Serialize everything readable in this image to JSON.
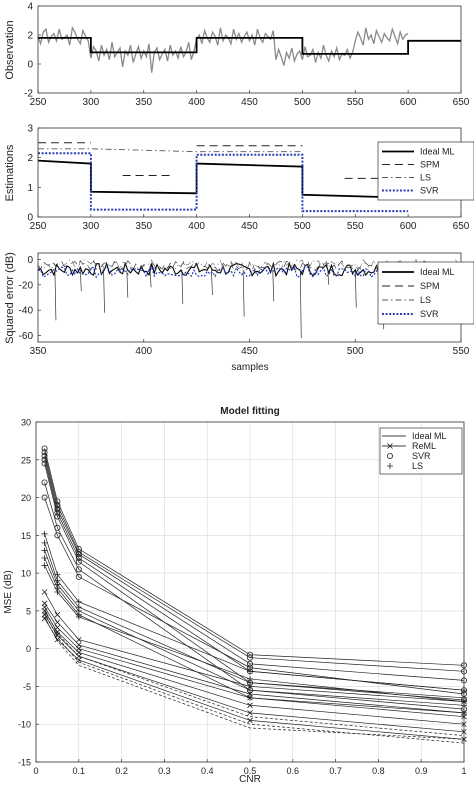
{
  "chart_data": [
    {
      "type": "line",
      "ylabel": "Observation",
      "xlim": [
        250,
        650
      ],
      "ylim": [
        -2,
        4
      ],
      "xticks": [
        250,
        300,
        350,
        400,
        450,
        500,
        550,
        600,
        650
      ],
      "yticks": [
        -2,
        0,
        2,
        4
      ],
      "series": [
        {
          "role": "step",
          "segments": [
            [
              250,
              300,
              1.8
            ],
            [
              300,
              400,
              0.8
            ],
            [
              400,
              500,
              1.8
            ],
            [
              500,
              600,
              0.7
            ],
            [
              600,
              650,
              1.6
            ]
          ]
        },
        {
          "role": "noisy-observation",
          "x_start": 250,
          "x_step": 2.5,
          "values": [
            1.9,
            1.4,
            2.2,
            2.4,
            1.5,
            1.9,
            2.1,
            1.6,
            2.4,
            1.7,
            1.8,
            2.0,
            1.3,
            2.5,
            2.2,
            1.7,
            1.4,
            2.3,
            1.9,
            1.6,
            0.4,
            1.2,
            0.9,
            0.2,
            1.3,
            0.6,
            1.0,
            0.3,
            1.5,
            0.5,
            0.8,
            1.1,
            -0.2,
            0.9,
            0.6,
            1.3,
            0.1,
            0.7,
            1.2,
            0.4,
            0.9,
            0.5,
            1.4,
            -0.6,
            0.8,
            1.1,
            0.3,
            0.7,
            1.0,
            0.2,
            1.3,
            0.6,
            0.9,
            0.4,
            1.2,
            0.5,
            0.8,
            1.5,
            0.3,
            0.9,
            1.7,
            2.0,
            1.4,
            2.3,
            1.8,
            1.5,
            2.2,
            1.9,
            1.3,
            2.5,
            1.6,
            2.0,
            1.8,
            1.4,
            2.4,
            1.7,
            2.1,
            1.5,
            1.9,
            2.2,
            1.6,
            2.0,
            1.3,
            2.4,
            1.8,
            1.5,
            2.1,
            1.9,
            1.7,
            2.3,
            0.3,
            1.0,
            0.5,
            -0.1,
            0.8,
            0.4,
            1.1,
            0.2,
            0.7,
            0.9,
            0.3,
            1.2,
            0.5,
            0.6,
            1.0,
            0.1,
            0.8,
            0.4,
            1.3,
            0.6,
            0.2,
            0.9,
            0.5,
            1.1,
            0.3,
            0.7,
            0.6,
            1.0,
            0.4,
            0.8,
            1.6,
            2.2,
            1.8,
            1.3,
            2.5,
            1.7,
            2.0,
            1.4,
            2.3,
            1.9,
            1.5,
            2.1,
            1.8,
            1.6,
            2.4,
            1.9,
            1.4,
            2.2,
            1.7,
            2.0,
            2.1
          ]
        }
      ]
    },
    {
      "type": "line",
      "ylabel": "Estimations",
      "xlim": [
        250,
        650
      ],
      "ylim": [
        0,
        3
      ],
      "xticks": [
        250,
        300,
        350,
        400,
        450,
        500,
        550,
        600,
        650
      ],
      "yticks": [
        0,
        1,
        2,
        3
      ],
      "legend": {
        "placement": "right",
        "entries": [
          "Ideal ML",
          "SPM",
          "LS",
          "SVR"
        ]
      },
      "series": [
        {
          "name": "Ideal ML",
          "style": "solid",
          "segments": [
            [
              250,
              300,
              1.9,
              1.8
            ],
            [
              300,
              400,
              0.85,
              0.8
            ],
            [
              400,
              500,
              1.8,
              1.7
            ],
            [
              500,
              600,
              0.75,
              0.65
            ]
          ]
        },
        {
          "name": "SPM",
          "style": "dashed",
          "segments": [
            [
              250,
              300,
              2.5,
              2.5
            ],
            [
              330,
              375,
              1.4,
              1.4
            ],
            [
              400,
              500,
              2.4,
              2.4
            ],
            [
              540,
              580,
              1.3,
              1.3
            ]
          ]
        },
        {
          "name": "LS",
          "style": "dash-dot",
          "segments": [
            [
              250,
              300,
              2.3,
              2.3
            ],
            [
              400,
              500,
              2.2,
              2.2
            ]
          ]
        },
        {
          "name": "SVR",
          "style": "dotted",
          "segments": [
            [
              250,
              300,
              2.15,
              2.15
            ],
            [
              300,
              400,
              0.25,
              0.25
            ],
            [
              400,
              500,
              2.1,
              2.1
            ],
            [
              500,
              600,
              0.2,
              0.2
            ]
          ]
        }
      ]
    },
    {
      "type": "line",
      "ylabel": "Squared error (dB)",
      "xlabel": "samples",
      "xlim": [
        350,
        550
      ],
      "ylim": [
        -65,
        5
      ],
      "xticks": [
        350,
        400,
        450,
        500,
        550
      ],
      "yticks": [
        0,
        -20,
        -40,
        -60
      ],
      "legend": {
        "placement": "right",
        "entries": [
          "Ideal ML",
          "SPM",
          "LS",
          "SVR"
        ]
      },
      "series": [
        {
          "name": "Ideal ML",
          "style": "solid",
          "mean": -8
        },
        {
          "name": "SPM",
          "style": "dashed",
          "mean": -5
        },
        {
          "name": "LS",
          "style": "dash-dot",
          "mean": -4
        },
        {
          "name": "SVR",
          "style": "dotted",
          "mean": -10
        },
        {
          "role": "error-dips",
          "x": [
            358,
            370,
            381,
            392,
            403,
            418,
            432,
            447,
            461,
            474,
            487,
            500,
            513,
            526,
            538
          ],
          "y": [
            -48,
            -25,
            -42,
            -30,
            -22,
            -35,
            -28,
            -45,
            -33,
            -62,
            -20,
            -38,
            -55,
            -27,
            -40
          ]
        }
      ]
    },
    {
      "type": "line",
      "title": "Model fitting",
      "xlabel": "CNR",
      "ylabel": "MSE (dB)",
      "xlim": [
        0,
        1
      ],
      "ylim": [
        -15,
        30
      ],
      "xticks": [
        0,
        0.1,
        0.2,
        0.3,
        0.4,
        0.5,
        0.6,
        0.7,
        0.8,
        0.9,
        1
      ],
      "yticks": [
        -15,
        -10,
        -5,
        0,
        5,
        10,
        15,
        20,
        25,
        30
      ],
      "x": [
        0.02,
        0.05,
        0.1,
        0.5,
        1
      ],
      "grid": true,
      "legend": {
        "placement": "top-right",
        "entries": [
          "Ideal ML",
          "ReML",
          "SVR",
          "LS"
        ]
      },
      "series": [
        {
          "name": "SVR",
          "marker": "circle",
          "lines": [
            [
              26.5,
              19.5,
              13.2,
              -0.8,
              -2.2
            ],
            [
              26.0,
              19.0,
              12.8,
              -1.2,
              -3.0
            ],
            [
              25.5,
              18.5,
              12.5,
              -2.0,
              -4.2
            ],
            [
              25.0,
              18.0,
              12.0,
              -3.0,
              -5.5
            ],
            [
              24.5,
              17.5,
              11.5,
              -4.5,
              -6.8
            ],
            [
              22.0,
              16.0,
              10.5,
              -5.5,
              -8.0
            ],
            [
              20.0,
              15.0,
              9.5,
              -2.5,
              -6.0
            ]
          ]
        },
        {
          "name": "LS",
          "marker": "plus",
          "lines": [
            [
              15.2,
              9.8,
              6.2,
              -3.0,
              -5.5
            ],
            [
              14.0,
              9.0,
              5.5,
              -4.5,
              -6.5
            ],
            [
              13.0,
              8.5,
              5.0,
              -5.5,
              -7.5
            ],
            [
              12.0,
              8.0,
              4.5,
              -6.5,
              -8.5
            ],
            [
              11.0,
              7.5,
              4.2,
              -4.0,
              -7.0
            ]
          ]
        },
        {
          "name": "ReML",
          "marker": "x",
          "lines": [
            [
              7.5,
              4.5,
              1.2,
              -5.0,
              -7.0
            ],
            [
              6.0,
              3.5,
              0.5,
              -6.0,
              -8.5
            ],
            [
              5.5,
              2.8,
              0.0,
              -6.5,
              -9.0
            ],
            [
              5.0,
              2.2,
              -0.5,
              -7.5,
              -10.0
            ],
            [
              4.5,
              1.8,
              -1.0,
              -8.5,
              -11.0
            ],
            [
              4.0,
              1.2,
              -1.5,
              -9.5,
              -12.0
            ]
          ]
        },
        {
          "name": "Ideal ML",
          "marker": "none",
          "lines": [
            [
              5.2,
              2.0,
              -1.0,
              -9.0,
              -11.5
            ],
            [
              4.8,
              1.5,
              -1.8,
              -10.0,
              -12.5
            ],
            [
              4.2,
              1.0,
              -2.2,
              -10.5,
              -12.0
            ]
          ]
        }
      ]
    }
  ]
}
